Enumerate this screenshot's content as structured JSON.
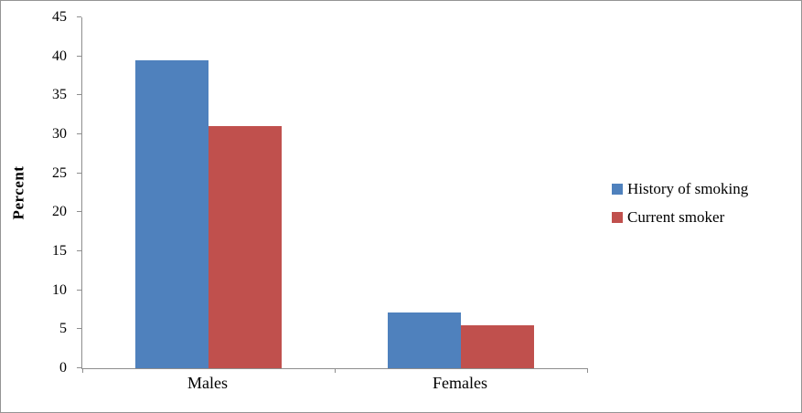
{
  "chart_data": {
    "type": "bar",
    "title": "",
    "categories": [
      "Males",
      "Females"
    ],
    "series": [
      {
        "name": "History of smoking",
        "color": "#4F81BD",
        "values": [
          39.5,
          7.2
        ]
      },
      {
        "name": "Current smoker",
        "color": "#C0504D",
        "values": [
          31.0,
          5.5
        ]
      }
    ],
    "xlabel": "",
    "ylabel": "Percent",
    "ylim": [
      0,
      45
    ],
    "ytick_step": 5,
    "grid": false,
    "legend_position": "right",
    "axis_color": "#8e8e8e"
  }
}
